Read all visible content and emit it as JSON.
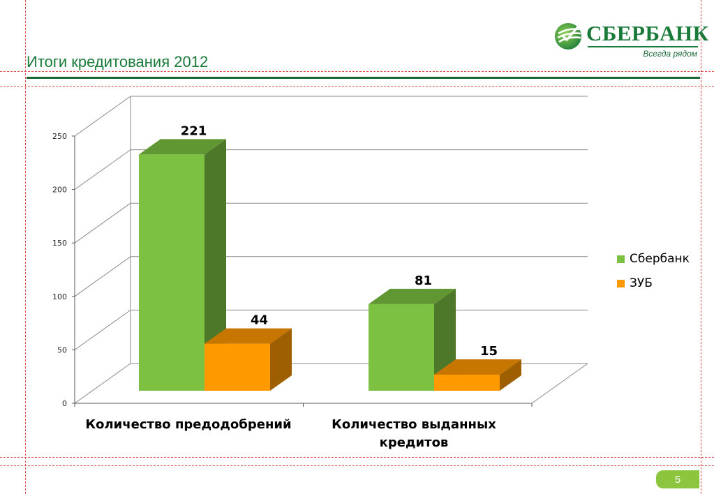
{
  "header": {
    "title": "Итоги кредитования 2012"
  },
  "logo": {
    "wordmark": "СБЕРБАНК",
    "tagline": "Всегда рядом",
    "icon": "sberbank-logo-icon"
  },
  "page_number": "5",
  "colors": {
    "accent_green": "#1a7a3a",
    "sberbank_series": "#7cc142",
    "zub_series": "#ff9900",
    "guide_lines": "#e05050"
  },
  "chart_data": {
    "type": "bar",
    "style": "3d-clustered",
    "categories": [
      "Количество предодобрений",
      "Количество выданных кредитов"
    ],
    "series": [
      {
        "name": "Сбербанк",
        "values": [
          221,
          81
        ],
        "color": "#7cc142"
      },
      {
        "name": "ЗУБ",
        "values": [
          44,
          15
        ],
        "color": "#ff9900"
      }
    ],
    "ylim": [
      0,
      250
    ],
    "yticks": [
      0,
      50,
      100,
      150,
      200,
      250
    ],
    "data_labels": true,
    "grid": true,
    "legend_position": "right"
  }
}
